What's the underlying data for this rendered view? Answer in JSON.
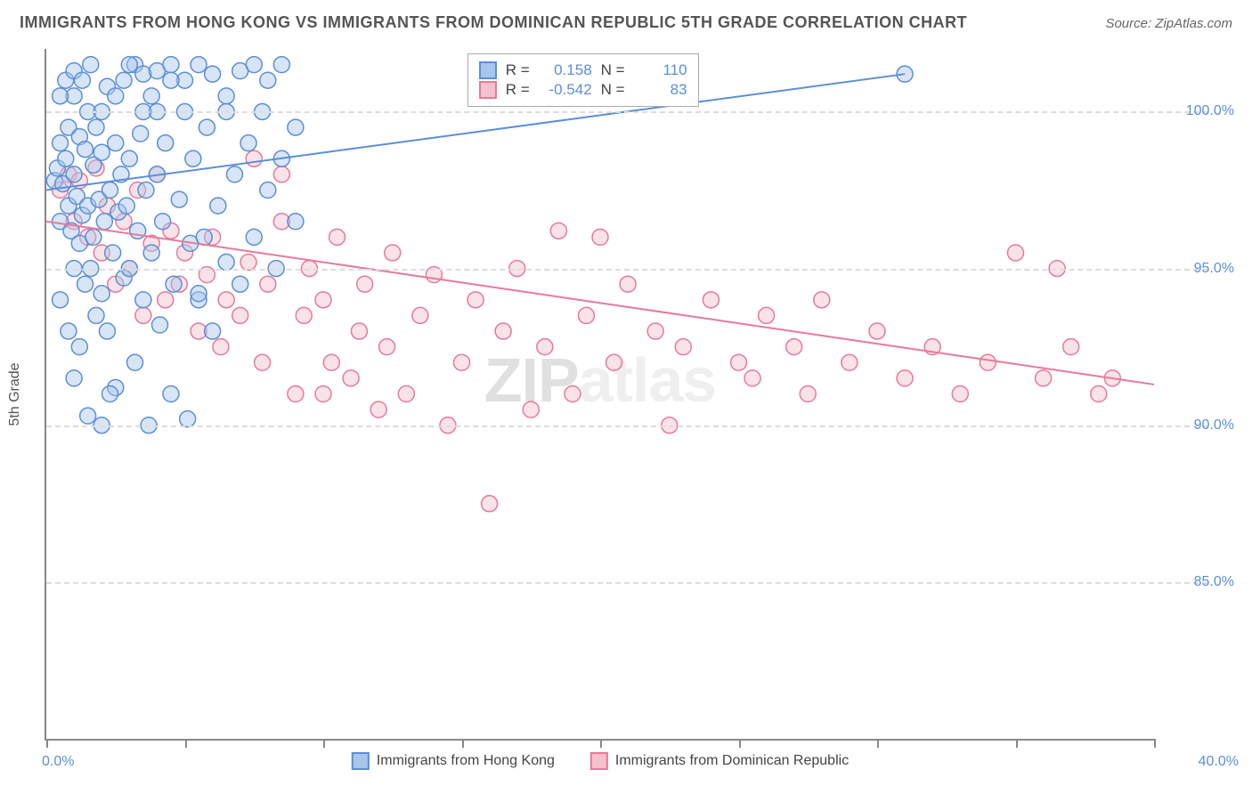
{
  "title": "IMMIGRANTS FROM HONG KONG VS IMMIGRANTS FROM DOMINICAN REPUBLIC 5TH GRADE CORRELATION CHART",
  "source": "Source: ZipAtlas.com",
  "watermark_a": "ZIP",
  "watermark_b": "atlas",
  "y_axis_title": "5th Grade",
  "x_min_label": "0.0%",
  "x_max_label": "40.0%",
  "chart": {
    "type": "scatter",
    "xlim": [
      0,
      40
    ],
    "ylim": [
      80,
      102
    ],
    "y_ticks": [
      85,
      90,
      95,
      100
    ],
    "y_tick_labels": [
      "85.0%",
      "90.0%",
      "95.0%",
      "100.0%"
    ],
    "x_ticks": [
      0,
      5,
      10,
      15,
      20,
      25,
      30,
      35,
      40
    ],
    "background_color": "#ffffff",
    "grid_color": "#dddddd",
    "axis_color": "#888888",
    "tick_label_color": "#5b8fd6",
    "marker_radius": 9,
    "marker_opacity": 0.45,
    "line_width": 2
  },
  "series": {
    "hk": {
      "label": "Immigrants from Hong Kong",
      "fill": "#a8c6eb",
      "stroke": "#5b8fd6",
      "r_label": "R =",
      "n_label": "N =",
      "r": "0.158",
      "n": "110",
      "trend": {
        "x1": 0,
        "y1": 97.5,
        "x2": 31,
        "y2": 101.2
      },
      "points": [
        [
          0.3,
          97.8
        ],
        [
          0.4,
          98.2
        ],
        [
          0.5,
          96.5
        ],
        [
          0.5,
          99.0
        ],
        [
          0.6,
          97.7
        ],
        [
          0.7,
          98.5
        ],
        [
          0.8,
          97.0
        ],
        [
          0.8,
          99.5
        ],
        [
          0.9,
          96.2
        ],
        [
          1.0,
          98.0
        ],
        [
          1.0,
          100.5
        ],
        [
          1.1,
          97.3
        ],
        [
          1.2,
          95.8
        ],
        [
          1.2,
          99.2
        ],
        [
          1.3,
          96.7
        ],
        [
          1.4,
          98.8
        ],
        [
          1.4,
          94.5
        ],
        [
          1.5,
          97.0
        ],
        [
          1.5,
          100.0
        ],
        [
          1.6,
          95.0
        ],
        [
          1.7,
          98.3
        ],
        [
          1.7,
          96.0
        ],
        [
          1.8,
          93.5
        ],
        [
          1.8,
          99.5
        ],
        [
          1.9,
          97.2
        ],
        [
          2.0,
          94.2
        ],
        [
          2.0,
          98.7
        ],
        [
          2.1,
          96.5
        ],
        [
          2.2,
          100.8
        ],
        [
          2.2,
          93.0
        ],
        [
          2.3,
          97.5
        ],
        [
          2.4,
          95.5
        ],
        [
          2.5,
          99.0
        ],
        [
          2.5,
          91.2
        ],
        [
          2.6,
          96.8
        ],
        [
          2.7,
          98.0
        ],
        [
          2.8,
          94.7
        ],
        [
          2.8,
          101.0
        ],
        [
          2.9,
          97.0
        ],
        [
          3.0,
          95.0
        ],
        [
          3.0,
          98.5
        ],
        [
          3.2,
          101.5
        ],
        [
          3.2,
          92.0
        ],
        [
          3.3,
          96.2
        ],
        [
          3.4,
          99.3
        ],
        [
          3.5,
          101.2
        ],
        [
          3.5,
          94.0
        ],
        [
          3.6,
          97.5
        ],
        [
          3.7,
          90.0
        ],
        [
          3.8,
          100.5
        ],
        [
          3.8,
          95.5
        ],
        [
          4.0,
          101.3
        ],
        [
          4.0,
          98.0
        ],
        [
          4.1,
          93.2
        ],
        [
          4.2,
          96.5
        ],
        [
          4.3,
          99.0
        ],
        [
          4.5,
          101.5
        ],
        [
          4.5,
          91.0
        ],
        [
          4.6,
          94.5
        ],
        [
          4.8,
          97.2
        ],
        [
          5.0,
          101.0
        ],
        [
          5.0,
          100.0
        ],
        [
          5.1,
          90.2
        ],
        [
          5.2,
          95.8
        ],
        [
          5.3,
          98.5
        ],
        [
          5.5,
          101.5
        ],
        [
          5.5,
          94.0
        ],
        [
          5.7,
          96.0
        ],
        [
          5.8,
          99.5
        ],
        [
          6.0,
          101.2
        ],
        [
          6.0,
          93.0
        ],
        [
          6.2,
          97.0
        ],
        [
          6.5,
          100.5
        ],
        [
          6.5,
          95.2
        ],
        [
          6.8,
          98.0
        ],
        [
          7.0,
          101.3
        ],
        [
          7.0,
          94.5
        ],
        [
          7.3,
          99.0
        ],
        [
          7.5,
          101.5
        ],
        [
          7.5,
          96.0
        ],
        [
          7.8,
          100.0
        ],
        [
          8.0,
          97.5
        ],
        [
          8.0,
          101.0
        ],
        [
          8.3,
          95.0
        ],
        [
          8.5,
          98.5
        ],
        [
          8.5,
          101.5
        ],
        [
          9.0,
          99.5
        ],
        [
          9.0,
          96.5
        ],
        [
          1.0,
          91.5
        ],
        [
          1.5,
          90.3
        ],
        [
          2.0,
          90.0
        ],
        [
          0.5,
          94.0
        ],
        [
          0.8,
          93.0
        ],
        [
          1.2,
          92.5
        ],
        [
          2.3,
          91.0
        ],
        [
          3.0,
          101.5
        ],
        [
          3.5,
          100.0
        ],
        [
          0.5,
          100.5
        ],
        [
          0.7,
          101.0
        ],
        [
          1.0,
          101.3
        ],
        [
          1.3,
          101.0
        ],
        [
          1.6,
          101.5
        ],
        [
          2.0,
          100.0
        ],
        [
          2.5,
          100.5
        ],
        [
          4.5,
          101.0
        ],
        [
          5.5,
          94.2
        ],
        [
          6.5,
          100.0
        ],
        [
          4.0,
          100.0
        ],
        [
          31.0,
          101.2
        ],
        [
          1.0,
          95.0
        ]
      ]
    },
    "dr": {
      "label": "Immigrants from Dominican Republic",
      "fill": "#f4c1cc",
      "stroke": "#e67a9a",
      "r_label": "R =",
      "n_label": "N =",
      "r": "-0.542",
      "n": "83",
      "trend": {
        "x1": 0,
        "y1": 96.5,
        "x2": 40,
        "y2": 91.3
      },
      "points": [
        [
          0.5,
          97.5
        ],
        [
          0.8,
          98.0
        ],
        [
          1.0,
          96.5
        ],
        [
          1.2,
          97.8
        ],
        [
          1.5,
          96.0
        ],
        [
          1.8,
          98.2
        ],
        [
          2.0,
          95.5
        ],
        [
          2.2,
          97.0
        ],
        [
          2.5,
          94.5
        ],
        [
          2.8,
          96.5
        ],
        [
          3.0,
          95.0
        ],
        [
          3.3,
          97.5
        ],
        [
          3.5,
          93.5
        ],
        [
          3.8,
          95.8
        ],
        [
          4.0,
          98.0
        ],
        [
          4.3,
          94.0
        ],
        [
          4.5,
          96.2
        ],
        [
          4.8,
          94.5
        ],
        [
          5.0,
          95.5
        ],
        [
          5.5,
          93.0
        ],
        [
          5.8,
          94.8
        ],
        [
          6.0,
          96.0
        ],
        [
          6.3,
          92.5
        ],
        [
          6.5,
          94.0
        ],
        [
          7.0,
          93.5
        ],
        [
          7.3,
          95.2
        ],
        [
          7.5,
          98.5
        ],
        [
          7.8,
          92.0
        ],
        [
          8.0,
          94.5
        ],
        [
          8.5,
          96.5
        ],
        [
          8.5,
          98.0
        ],
        [
          9.0,
          91.0
        ],
        [
          9.3,
          93.5
        ],
        [
          9.5,
          95.0
        ],
        [
          10.0,
          94.0
        ],
        [
          10.3,
          92.0
        ],
        [
          10.5,
          96.0
        ],
        [
          11.0,
          91.5
        ],
        [
          11.3,
          93.0
        ],
        [
          11.5,
          94.5
        ],
        [
          12.0,
          90.5
        ],
        [
          12.3,
          92.5
        ],
        [
          12.5,
          95.5
        ],
        [
          13.0,
          91.0
        ],
        [
          13.5,
          93.5
        ],
        [
          14.0,
          94.8
        ],
        [
          14.5,
          90.0
        ],
        [
          15.0,
          92.0
        ],
        [
          15.5,
          94.0
        ],
        [
          16.0,
          87.5
        ],
        [
          16.5,
          93.0
        ],
        [
          17.0,
          95.0
        ],
        [
          17.5,
          90.5
        ],
        [
          18.0,
          92.5
        ],
        [
          18.5,
          96.2
        ],
        [
          19.0,
          91.0
        ],
        [
          19.5,
          93.5
        ],
        [
          20.0,
          96.0
        ],
        [
          20.5,
          92.0
        ],
        [
          21.0,
          94.5
        ],
        [
          22.0,
          93.0
        ],
        [
          22.5,
          90.0
        ],
        [
          23.0,
          92.5
        ],
        [
          24.0,
          94.0
        ],
        [
          25.0,
          92.0
        ],
        [
          25.5,
          91.5
        ],
        [
          26.0,
          93.5
        ],
        [
          27.0,
          92.5
        ],
        [
          27.5,
          91.0
        ],
        [
          28.0,
          94.0
        ],
        [
          29.0,
          92.0
        ],
        [
          30.0,
          93.0
        ],
        [
          31.0,
          91.5
        ],
        [
          32.0,
          92.5
        ],
        [
          33.0,
          91.0
        ],
        [
          34.0,
          92.0
        ],
        [
          35.0,
          95.5
        ],
        [
          36.0,
          91.5
        ],
        [
          36.5,
          95.0
        ],
        [
          37.0,
          92.5
        ],
        [
          38.0,
          91.0
        ],
        [
          38.5,
          91.5
        ],
        [
          10.0,
          91.0
        ]
      ]
    }
  }
}
